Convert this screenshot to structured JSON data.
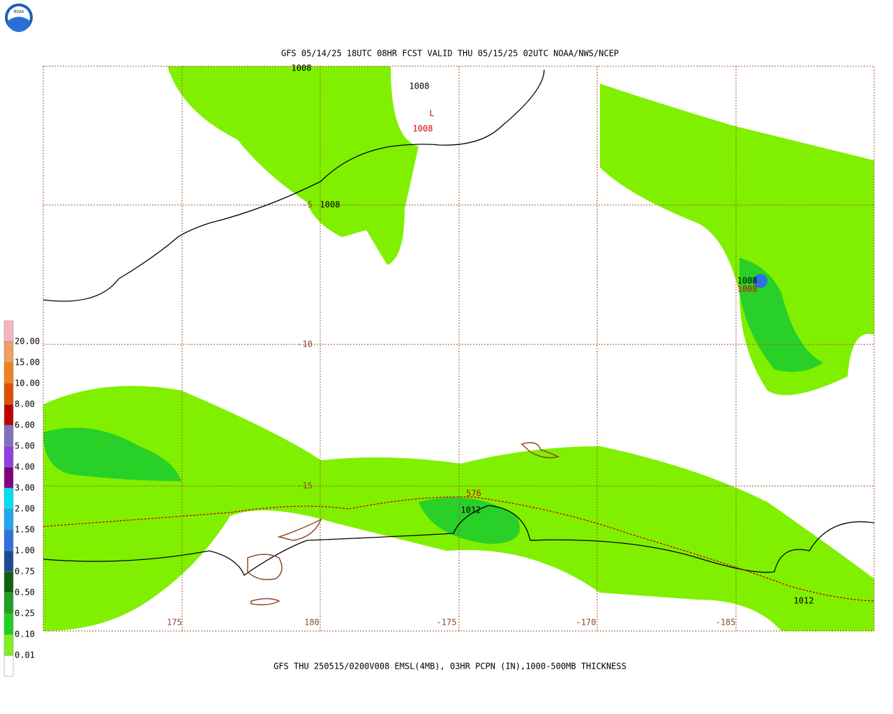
{
  "header": {
    "title": "GFS 05/14/25 18UTC 08HR FCST VALID THU 05/15/25 02UTC NOAA/NWS/NCEP"
  },
  "footer": {
    "caption": "GFS THU 250515/0200V008 EMSL(4MB), 03HR PCPN (IN),1000-500MB THICKNESS"
  },
  "logo": {
    "text": "NOAA"
  },
  "legend": {
    "labels": [
      "20.00",
      "15.00",
      "10.00",
      "8.00",
      "6.00",
      "5.00",
      "4.00",
      "3.00",
      "2.00",
      "1.50",
      "1.00",
      "0.75",
      "0.50",
      "0.25",
      "0.10",
      "0.01"
    ],
    "colors": [
      "#f8b4c0",
      "#f0a060",
      "#f08020",
      "#e05000",
      "#c00000",
      "#8070c0",
      "#9040e0",
      "#800080",
      "#00e0f0",
      "#20a8f0",
      "#3070e0",
      "#1c4c90",
      "#106010",
      "#20a020",
      "#20d020",
      "#80f020",
      "#ffffff"
    ]
  },
  "map": {
    "lon_labels": [
      "175",
      "180",
      "-175",
      "-170",
      "-185"
    ],
    "lat_labels": [
      "-5",
      "-10",
      "-15"
    ],
    "contour_labels": [
      {
        "text": "1008",
        "color": "#000000"
      },
      {
        "text": "1008",
        "color": "#000000"
      },
      {
        "text": "1008",
        "color": "#000000"
      },
      {
        "text": "1008",
        "color": "#000000"
      },
      {
        "text": "1008",
        "color": "#e00000"
      },
      {
        "text": "1008",
        "color": "#e00000"
      },
      {
        "text": "L",
        "color": "#e00000"
      },
      {
        "text": "576",
        "color": "#e00000"
      },
      {
        "text": "1012",
        "color": "#000000"
      },
      {
        "text": "1012",
        "color": "#000000"
      }
    ]
  }
}
